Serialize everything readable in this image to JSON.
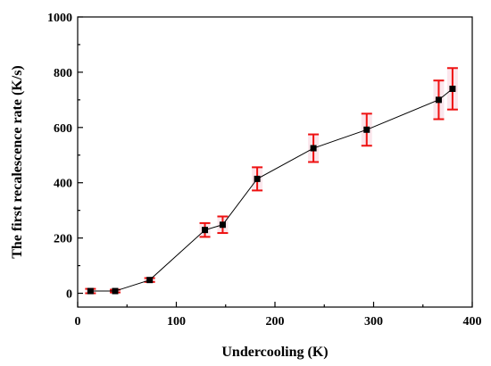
{
  "chart_data": {
    "type": "scatter",
    "title": "",
    "xlabel": "Undercooling (K)",
    "ylabel": "The first recalescence rate (K/s)",
    "xlim": [
      0,
      400
    ],
    "ylim": [
      -50,
      1000
    ],
    "x_ticks": [
      0,
      100,
      200,
      300,
      400
    ],
    "y_ticks": [
      0,
      200,
      400,
      600,
      800,
      1000
    ],
    "grid": false,
    "legend": "none",
    "series": [
      {
        "marker": "square",
        "connected": true,
        "x": [
          13,
          38,
          73,
          129,
          147,
          182,
          239,
          293,
          366,
          380
        ],
        "y": [
          8,
          8,
          48,
          229,
          248,
          414,
          525,
          592,
          700,
          740
        ],
        "error": [
          8,
          5,
          7,
          25,
          30,
          42,
          50,
          58,
          70,
          75
        ]
      }
    ],
    "colors": {
      "marker": "#000000",
      "line": "#000000",
      "error_bar": "#ee1111",
      "error_fill": "#f4b8c8"
    }
  }
}
